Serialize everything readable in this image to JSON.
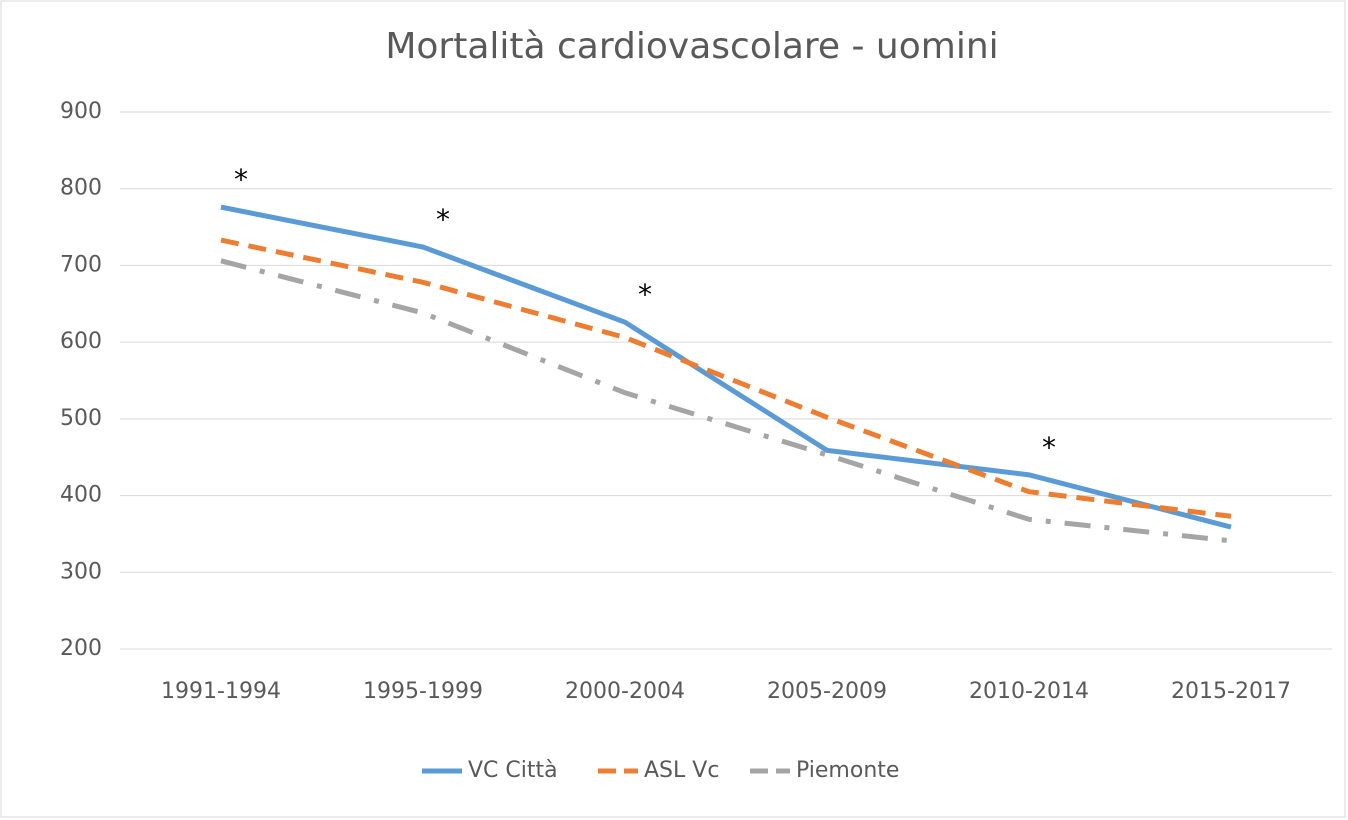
{
  "chart_data": {
    "type": "line",
    "title": "Mortalità cardiovascolare - uomini",
    "categories": [
      "1991-1994",
      "1995-1999",
      "2000-2004",
      "2005-2009",
      "2010-2014",
      "2015-2017"
    ],
    "series": [
      {
        "name": "VC Città",
        "color": "#5b9bd5",
        "style": "solid",
        "values": [
          776,
          724,
          626,
          459,
          427,
          359
        ]
      },
      {
        "name": "ASL Vc",
        "color": "#ed7d31",
        "style": "dash",
        "values": [
          733,
          678,
          606,
          502,
          405,
          373
        ]
      },
      {
        "name": "Piemonte",
        "color": "#a5a5a5",
        "style": "dashdot",
        "values": [
          706,
          638,
          534,
          453,
          369,
          341
        ]
      }
    ],
    "annotations": [
      {
        "text": "*",
        "series": 0,
        "category": "1991-1994"
      },
      {
        "text": "*",
        "series": 0,
        "category": "1995-1999"
      },
      {
        "text": "*",
        "series": 0,
        "category": "2000-2004"
      },
      {
        "text": "*",
        "series": 0,
        "category": "2010-2014"
      }
    ],
    "ylim": [
      200,
      900
    ],
    "yticks": [
      200,
      300,
      400,
      500,
      600,
      700,
      800,
      900
    ],
    "grid": true,
    "legend": "bottom"
  }
}
